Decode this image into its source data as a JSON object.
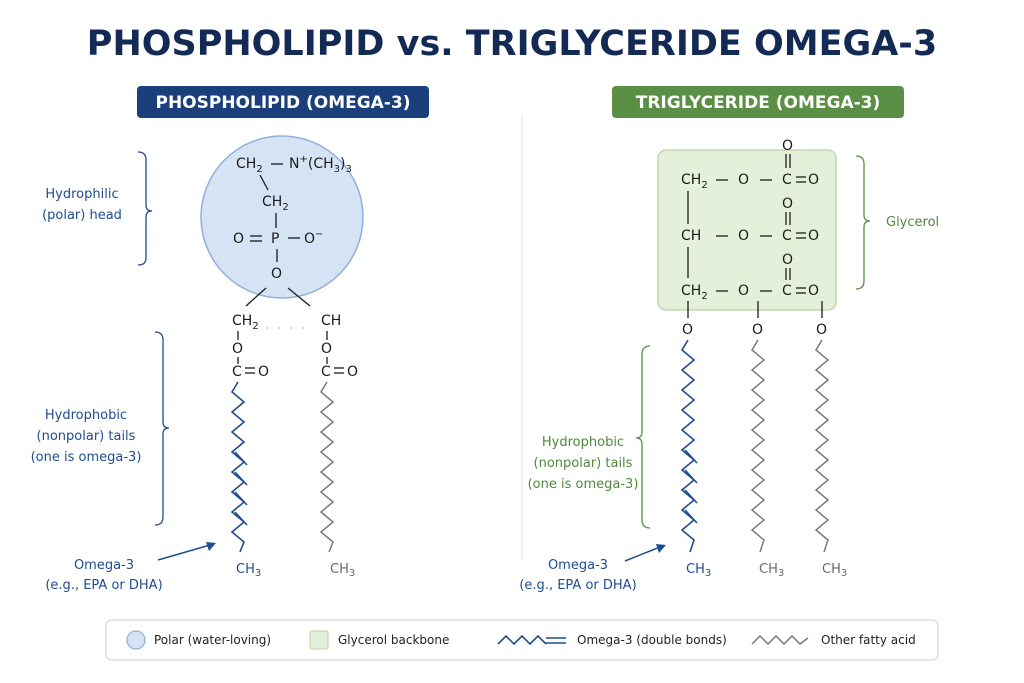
{
  "title": "PHOSPHOLIPID vs. TRIGLYCERIDE OMEGA-3",
  "phospholipid": {
    "header": "PHOSPHOLIPID (OMEGA-3)",
    "head_label": [
      "Hydrophilic",
      "(polar) head"
    ],
    "tails_label": [
      "Hydrophobic",
      "(nonpolar) tails",
      "(one is omega-3)"
    ],
    "omega_label": [
      "Omega-3",
      "(e.g., EPA or DHA)"
    ],
    "atoms": {
      "ch2_top": "CH",
      "n_plus": "N",
      "ch3_3": "(CH",
      "ch2_mid": "CH",
      "o_eq": "O",
      "p": "P",
      "o_minus": "O",
      "o_link": "O",
      "ch2_left": "CH",
      "ch_right": "CH",
      "o1": "O",
      "o2": "O",
      "c1": "C",
      "c2": "C",
      "o_dbl1": "O",
      "o_dbl2": "O",
      "ch3_blue": "CH",
      "ch3_gray": "CH"
    }
  },
  "triglyceride": {
    "header": "TRIGLYCERIDE (OMEGA-3)",
    "glycerol_label": "Glycerol",
    "tails_label": [
      "Hydrophobic",
      "(nonpolar) tails",
      "(one is omega-3)"
    ],
    "omega_label": [
      "Omega-3",
      "(e.g., EPA or DHA)"
    ],
    "rows": [
      {
        "carbon": "CH",
        "sub": "2",
        "o": "O",
        "c": "C",
        "o_dbl": "O",
        "o_top": "O"
      },
      {
        "carbon": "CH",
        "sub": "",
        "o": "O",
        "c": "C",
        "o_dbl": "O",
        "o_top": "O"
      },
      {
        "carbon": "CH",
        "sub": "2",
        "o": "O",
        "c": "C",
        "o_dbl": "O",
        "o_top": "O"
      }
    ],
    "tail_o": [
      "O",
      "O",
      "O"
    ],
    "ch3": [
      "CH",
      "CH",
      "CH"
    ]
  },
  "legend": {
    "polar": "Polar (water-loving)",
    "glycerol": "Glycerol backbone",
    "omega": "Omega-3 (double bonds)",
    "other": "Other fatty acid"
  },
  "colors": {
    "navy": "#1a3f7a",
    "green": "#5b8f46",
    "head_fill": "#d6e3f5",
    "glycerol_fill": "#e4f0d9",
    "blue_chain": "#1f4d8f",
    "gray_chain": "#7a7a7a"
  },
  "icons": [
    "polar-circle-icon",
    "glycerol-square-icon",
    "omega-zigzag-icon",
    "other-zigzag-icon",
    "arrow-icon",
    "brace-icon"
  ]
}
